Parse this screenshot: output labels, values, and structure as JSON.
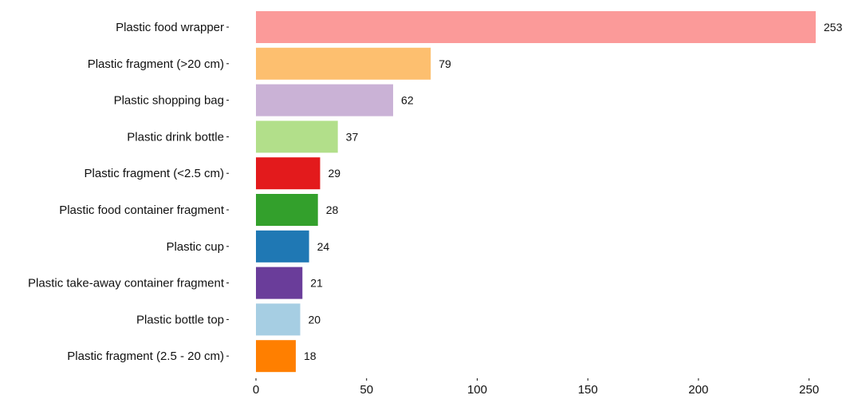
{
  "chart_data": {
    "type": "bar",
    "orientation": "horizontal",
    "title": "",
    "xlabel": "",
    "ylabel": "",
    "xlim": [
      0,
      253
    ],
    "x_ticks": [
      0,
      50,
      100,
      150,
      200,
      250
    ],
    "grid": false,
    "legend": "none",
    "categories": [
      "Plastic food wrapper",
      "Plastic fragment (>20 cm)",
      "Plastic shopping bag",
      "Plastic drink bottle",
      "Plastic fragment (<2.5 cm)",
      "Plastic food container fragment",
      "Plastic cup",
      "Plastic take-away container fragment",
      "Plastic bottle top",
      "Plastic fragment (2.5 - 20 cm)"
    ],
    "values": [
      253,
      79,
      62,
      37,
      29,
      28,
      24,
      21,
      20,
      18
    ],
    "colors": [
      "#fb9a99",
      "#fdbf6f",
      "#cab2d6",
      "#b2df8a",
      "#e31a1c",
      "#33a02c",
      "#1f78b4",
      "#6a3d9a",
      "#a6cee3",
      "#ff7f00"
    ]
  }
}
